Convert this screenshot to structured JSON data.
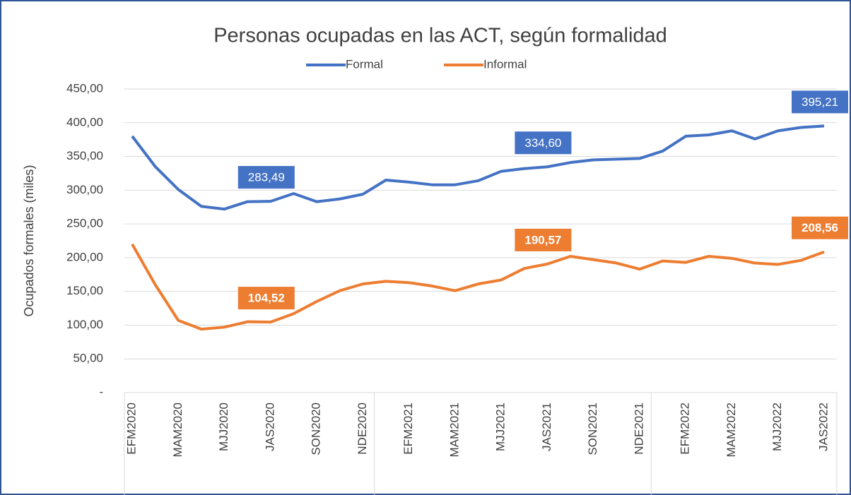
{
  "chart_data": {
    "type": "line",
    "title": "Personas ocupadas en las ACT, según formalidad",
    "y_label": "Ocupados formales (miles)",
    "categories": [
      "EFM2020",
      null,
      "MAM2020",
      null,
      "MJJ2020",
      null,
      "JAS2020",
      null,
      "SON2020",
      null,
      "NDE2020",
      null,
      "EFM2021",
      null,
      "MAM2021",
      null,
      "MJJ2021",
      null,
      "JAS2021",
      null,
      "SON2021",
      null,
      "NDE2021",
      null,
      "EFM2022",
      null,
      "MAM2022",
      null,
      "MJJ2022",
      null,
      "JAS2022"
    ],
    "series": [
      {
        "name": "Formal",
        "color": "#4472c4",
        "values": [
          380,
          335,
          301,
          276,
          272,
          283,
          283.49,
          295,
          283,
          287,
          294,
          315,
          312,
          308,
          308,
          314,
          328,
          332,
          334.6,
          341,
          345,
          346,
          347,
          358,
          380,
          382,
          388,
          376,
          388,
          393,
          395.21
        ],
        "value_labels": [
          null,
          null,
          null,
          null,
          null,
          null,
          "283,49",
          null,
          null,
          null,
          null,
          null,
          null,
          null,
          null,
          null,
          null,
          null,
          "334,60",
          null,
          null,
          null,
          null,
          null,
          null,
          null,
          null,
          null,
          null,
          null,
          "395,21"
        ]
      },
      {
        "name": "Informal",
        "color": "#ed7d31",
        "values": [
          220,
          160,
          107,
          94,
          97,
          105,
          104.52,
          117,
          135,
          151,
          161,
          165,
          163,
          158,
          151,
          161,
          167,
          184,
          190.57,
          202,
          197,
          192,
          183,
          195,
          193,
          202,
          199,
          192,
          190,
          196,
          208.56
        ],
        "value_labels": [
          null,
          null,
          null,
          null,
          null,
          null,
          "104,52",
          null,
          null,
          null,
          null,
          null,
          null,
          null,
          null,
          null,
          null,
          null,
          "190,57",
          null,
          null,
          null,
          null,
          null,
          null,
          null,
          null,
          null,
          null,
          null,
          "208,56"
        ]
      }
    ],
    "ylim": [
      0,
      450
    ],
    "yticks": [
      {
        "value": 0,
        "label": "-"
      },
      {
        "value": 50,
        "label": "50,00"
      },
      {
        "value": 100,
        "label": "100,00"
      },
      {
        "value": 150,
        "label": "150,00"
      },
      {
        "value": 200,
        "label": "200,00"
      },
      {
        "value": 250,
        "label": "250,00"
      },
      {
        "value": 300,
        "label": "300,00"
      },
      {
        "value": 350,
        "label": "350,00"
      },
      {
        "value": 400,
        "label": "400,00"
      },
      {
        "value": 450,
        "label": "450,00"
      }
    ],
    "grid": true,
    "legend": "top"
  }
}
